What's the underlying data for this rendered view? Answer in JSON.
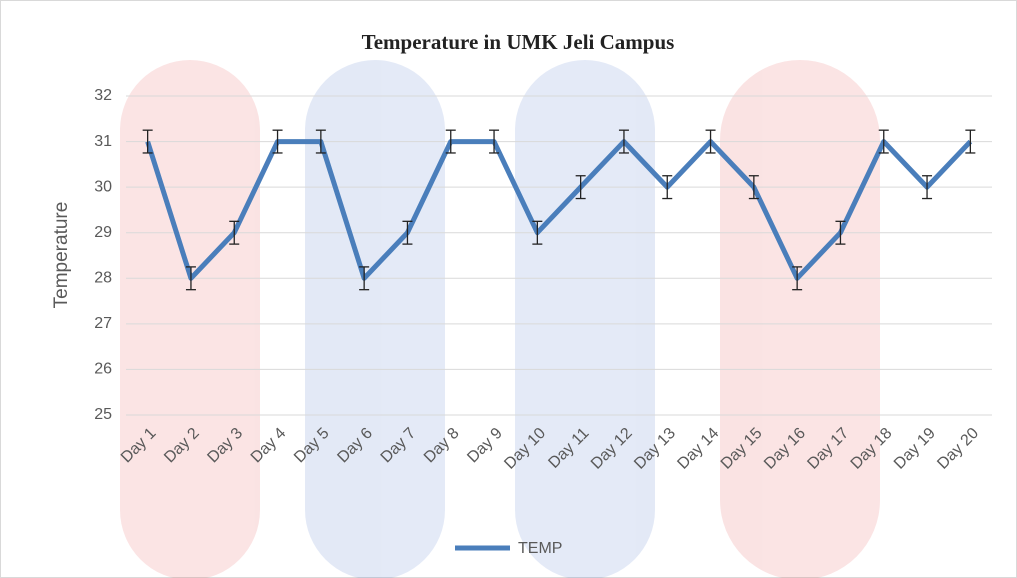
{
  "chart_data": {
    "type": "line",
    "title": "Temperature in UMK Jeli Campus",
    "y_label": "Temperature",
    "categories": [
      "Day 1",
      "Day 2",
      "Day 3",
      "Day 4",
      "Day 5",
      "Day 6",
      "Day 7",
      "Day 8",
      "Day 9",
      "Day 10",
      "Day 11",
      "Day 12",
      "Day 13",
      "Day 14",
      "Day 15",
      "Day 16",
      "Day 17",
      "Day 18",
      "Day 19",
      "Day 20"
    ],
    "series": [
      {
        "name": "TEMP",
        "color": "#4a7ebb",
        "values": [
          31,
          28,
          29,
          31,
          31,
          28,
          29,
          31,
          31,
          29,
          30,
          31,
          30,
          31,
          30,
          28,
          29,
          31,
          30,
          31
        ],
        "errors": [
          0.25,
          0.25,
          0.25,
          0.25,
          0.25,
          0.25,
          0.25,
          0.25,
          0.25,
          0.25,
          0.25,
          0.25,
          0.25,
          0.25,
          0.25,
          0.25,
          0.25,
          0.25,
          0.25,
          0.25
        ]
      }
    ],
    "ylim": [
      25,
      32
    ],
    "yticks": [
      25,
      26,
      27,
      28,
      29,
      30,
      31,
      32
    ],
    "grid": true,
    "legend": "bottom"
  }
}
